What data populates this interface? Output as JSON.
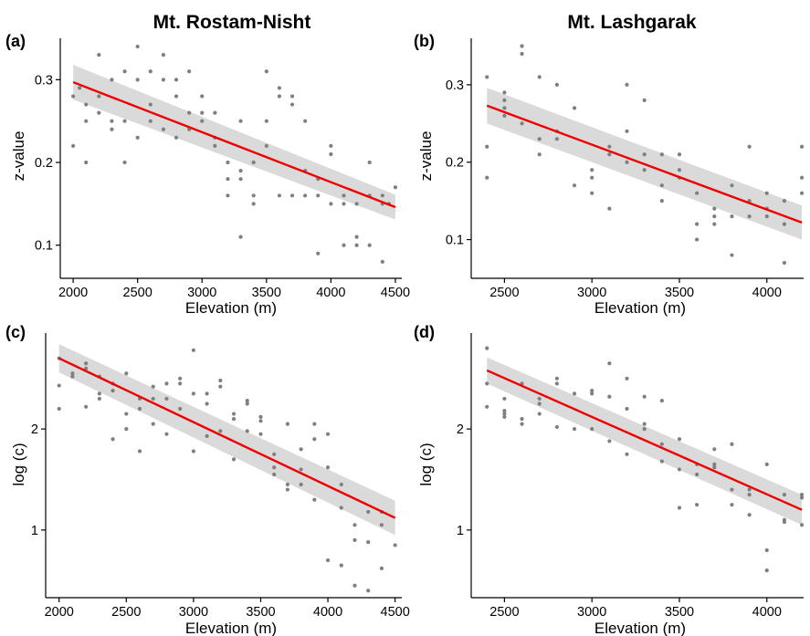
{
  "figure": {
    "column_titles": [
      "Mt. Rostam-Nisht",
      "Mt. Lashgarak"
    ]
  },
  "chart_data": [
    {
      "panel": "(a)",
      "type": "scatter",
      "xlabel": "Elevation (m)",
      "ylabel": "z-value",
      "xlim": [
        1900,
        4550
      ],
      "ylim": [
        0.06,
        0.35
      ],
      "xticks": [
        2000,
        2500,
        3000,
        3500,
        4000,
        4500
      ],
      "yticks": [
        0.1,
        0.2,
        0.3
      ],
      "ytick_labels": [
        "0.1",
        "0.2",
        "0.3"
      ],
      "grid": false,
      "colors": {
        "points": "#7f7f7f",
        "fit": "#ee0000",
        "band": "#d3d3d3"
      },
      "trend": {
        "x": [
          2000,
          4500
        ],
        "y": [
          0.297,
          0.146
        ],
        "ci_low": [
          0.276,
          0.131
        ],
        "ci_high": [
          0.318,
          0.161
        ]
      },
      "points": {
        "x": [
          2000,
          2000,
          2050,
          2100,
          2100,
          2100,
          2200,
          2200,
          2200,
          2300,
          2300,
          2300,
          2400,
          2400,
          2400,
          2500,
          2500,
          2500,
          2600,
          2600,
          2600,
          2700,
          2700,
          2700,
          2800,
          2800,
          2800,
          2900,
          2900,
          2900,
          3000,
          3000,
          3000,
          3100,
          3100,
          3100,
          3200,
          3200,
          3200,
          3300,
          3300,
          3300,
          3300,
          3400,
          3400,
          3400,
          3500,
          3500,
          3500,
          3600,
          3600,
          3600,
          3700,
          3700,
          3700,
          3800,
          3800,
          3800,
          3900,
          3900,
          3900,
          4000,
          4000,
          4000,
          4100,
          4100,
          4100,
          4200,
          4200,
          4200,
          4300,
          4300,
          4300,
          4400,
          4400,
          4400,
          4450,
          4500
        ],
        "y": [
          0.28,
          0.22,
          0.29,
          0.27,
          0.25,
          0.2,
          0.33,
          0.28,
          0.26,
          0.3,
          0.25,
          0.24,
          0.31,
          0.25,
          0.2,
          0.34,
          0.3,
          0.23,
          0.31,
          0.27,
          0.25,
          0.33,
          0.3,
          0.24,
          0.3,
          0.28,
          0.23,
          0.31,
          0.26,
          0.24,
          0.28,
          0.26,
          0.25,
          0.26,
          0.23,
          0.22,
          0.2,
          0.18,
          0.16,
          0.25,
          0.19,
          0.18,
          0.11,
          0.2,
          0.16,
          0.15,
          0.31,
          0.25,
          0.22,
          0.29,
          0.28,
          0.16,
          0.28,
          0.27,
          0.16,
          0.25,
          0.19,
          0.16,
          0.18,
          0.16,
          0.09,
          0.22,
          0.21,
          0.15,
          0.16,
          0.15,
          0.1,
          0.15,
          0.11,
          0.1,
          0.2,
          0.16,
          0.1,
          0.16,
          0.15,
          0.08,
          0.15,
          0.17
        ]
      }
    },
    {
      "panel": "(b)",
      "type": "scatter",
      "xlabel": "Elevation (m)",
      "ylabel": "z-value",
      "xlim": [
        2310,
        4210
      ],
      "ylim": [
        0.05,
        0.36
      ],
      "xticks": [
        2500,
        3000,
        3500,
        4000
      ],
      "yticks": [
        0.1,
        0.2,
        0.3
      ],
      "ytick_labels": [
        "0.1",
        "0.2",
        "0.3"
      ],
      "grid": false,
      "colors": {
        "points": "#7f7f7f",
        "fit": "#ee0000",
        "band": "#d3d3d3"
      },
      "trend": {
        "x": [
          2400,
          4200
        ],
        "y": [
          0.273,
          0.122
        ],
        "ci_low": [
          0.25,
          0.1
        ],
        "ci_high": [
          0.296,
          0.144
        ]
      },
      "points": {
        "x": [
          2400,
          2400,
          2400,
          2500,
          2500,
          2500,
          2500,
          2600,
          2600,
          2600,
          2700,
          2700,
          2700,
          2800,
          2800,
          2800,
          2900,
          2900,
          3000,
          3000,
          3000,
          3100,
          3100,
          3100,
          3200,
          3200,
          3200,
          3300,
          3300,
          3300,
          3400,
          3400,
          3400,
          3500,
          3500,
          3500,
          3600,
          3600,
          3600,
          3700,
          3700,
          3700,
          3800,
          3800,
          3800,
          3900,
          3900,
          3900,
          4000,
          4000,
          4000,
          4100,
          4100,
          4100,
          4200,
          4200,
          4200
        ],
        "y": [
          0.31,
          0.22,
          0.18,
          0.29,
          0.28,
          0.27,
          0.26,
          0.35,
          0.34,
          0.25,
          0.31,
          0.23,
          0.21,
          0.3,
          0.24,
          0.23,
          0.27,
          0.17,
          0.19,
          0.18,
          0.16,
          0.22,
          0.21,
          0.14,
          0.3,
          0.24,
          0.2,
          0.28,
          0.21,
          0.19,
          0.21,
          0.17,
          0.15,
          0.21,
          0.19,
          0.18,
          0.16,
          0.12,
          0.1,
          0.14,
          0.13,
          0.12,
          0.17,
          0.13,
          0.08,
          0.22,
          0.15,
          0.13,
          0.16,
          0.14,
          0.13,
          0.15,
          0.12,
          0.07,
          0.22,
          0.18,
          0.16
        ]
      }
    },
    {
      "panel": "(c)",
      "type": "scatter",
      "xlabel": "Elevation (m)",
      "ylabel": "log (c)",
      "xlim": [
        1900,
        4550
      ],
      "ylim": [
        0.33,
        2.95
      ],
      "xticks": [
        2000,
        2500,
        3000,
        3500,
        4000,
        4500
      ],
      "yticks": [
        1,
        2
      ],
      "ytick_labels": [
        "1",
        "2"
      ],
      "grid": false,
      "colors": {
        "points": "#7f7f7f",
        "fit": "#ee0000",
        "band": "#d3d3d3"
      },
      "trend": {
        "x": [
          2000,
          4500
        ],
        "y": [
          2.7,
          1.12
        ],
        "ci_low": [
          2.56,
          0.95
        ],
        "ci_high": [
          2.84,
          1.29
        ]
      },
      "points": {
        "x": [
          2000,
          2000,
          2000,
          2100,
          2100,
          2200,
          2200,
          2200,
          2300,
          2300,
          2300,
          2400,
          2400,
          2400,
          2500,
          2500,
          2500,
          2600,
          2600,
          2600,
          2700,
          2700,
          2700,
          2800,
          2800,
          2800,
          2900,
          2900,
          2900,
          3000,
          3000,
          3000,
          3100,
          3100,
          3100,
          3200,
          3200,
          3200,
          3300,
          3300,
          3300,
          3400,
          3400,
          3400,
          3500,
          3500,
          3500,
          3600,
          3600,
          3600,
          3700,
          3700,
          3700,
          3800,
          3800,
          3800,
          3900,
          3900,
          3900,
          4000,
          4000,
          4000,
          4100,
          4100,
          4100,
          4200,
          4200,
          4200,
          4300,
          4300,
          4300,
          4400,
          4400,
          4400,
          4500
        ],
        "y": [
          2.7,
          2.43,
          2.2,
          2.55,
          2.52,
          2.65,
          2.6,
          2.22,
          2.52,
          2.35,
          2.3,
          2.45,
          2.38,
          1.9,
          2.55,
          2.15,
          2.0,
          2.3,
          2.2,
          1.78,
          2.42,
          2.3,
          2.05,
          2.45,
          2.3,
          1.95,
          2.5,
          2.45,
          2.2,
          2.78,
          2.35,
          1.78,
          2.35,
          2.25,
          1.93,
          2.48,
          2.42,
          1.98,
          2.15,
          2.1,
          1.7,
          2.28,
          2.25,
          1.98,
          2.12,
          2.08,
          1.95,
          1.75,
          1.62,
          1.55,
          2.05,
          1.45,
          1.4,
          1.8,
          1.6,
          1.45,
          2.05,
          1.9,
          1.3,
          1.95,
          1.62,
          0.7,
          1.45,
          1.22,
          0.65,
          1.05,
          0.9,
          0.45,
          1.18,
          0.88,
          0.4,
          1.18,
          1.05,
          0.62,
          0.85
        ]
      }
    },
    {
      "panel": "(d)",
      "type": "scatter",
      "xlabel": "Elevation (m)",
      "ylabel": "log (c)",
      "xlim": [
        2310,
        4210
      ],
      "ylim": [
        0.33,
        2.95
      ],
      "xticks": [
        2500,
        3000,
        3500,
        4000
      ],
      "yticks": [
        1,
        2
      ],
      "ytick_labels": [
        "1",
        "2"
      ],
      "grid": false,
      "colors": {
        "points": "#7f7f7f",
        "fit": "#ee0000",
        "band": "#d3d3d3"
      },
      "trend": {
        "x": [
          2400,
          4200
        ],
        "y": [
          2.58,
          1.2
        ],
        "ci_low": [
          2.45,
          1.05
        ],
        "ci_high": [
          2.71,
          1.35
        ]
      },
      "points": {
        "x": [
          2400,
          2400,
          2400,
          2500,
          2500,
          2500,
          2500,
          2600,
          2600,
          2600,
          2700,
          2700,
          2700,
          2800,
          2800,
          2800,
          2900,
          2900,
          3000,
          3000,
          3000,
          3100,
          3100,
          3100,
          3200,
          3200,
          3200,
          3300,
          3300,
          3300,
          3400,
          3400,
          3400,
          3500,
          3500,
          3500,
          3600,
          3600,
          3600,
          3700,
          3700,
          3700,
          3800,
          3800,
          3800,
          3900,
          3900,
          3900,
          4000,
          4000,
          4000,
          4100,
          4100,
          4100,
          4200,
          4200,
          4200
        ],
        "y": [
          2.8,
          2.45,
          2.22,
          2.3,
          2.18,
          2.15,
          2.12,
          2.45,
          2.1,
          2.05,
          2.3,
          2.25,
          2.15,
          2.5,
          2.45,
          2.02,
          2.35,
          2.0,
          2.38,
          2.35,
          2.0,
          2.65,
          2.32,
          1.88,
          2.5,
          2.2,
          1.75,
          2.32,
          2.05,
          2.0,
          2.28,
          1.85,
          1.68,
          1.9,
          1.6,
          1.22,
          1.65,
          1.55,
          1.25,
          1.8,
          1.65,
          1.62,
          1.85,
          1.4,
          1.25,
          1.4,
          1.35,
          1.15,
          1.65,
          0.8,
          0.6,
          1.35,
          1.1,
          1.08,
          1.35,
          1.32,
          1.05
        ]
      }
    }
  ]
}
